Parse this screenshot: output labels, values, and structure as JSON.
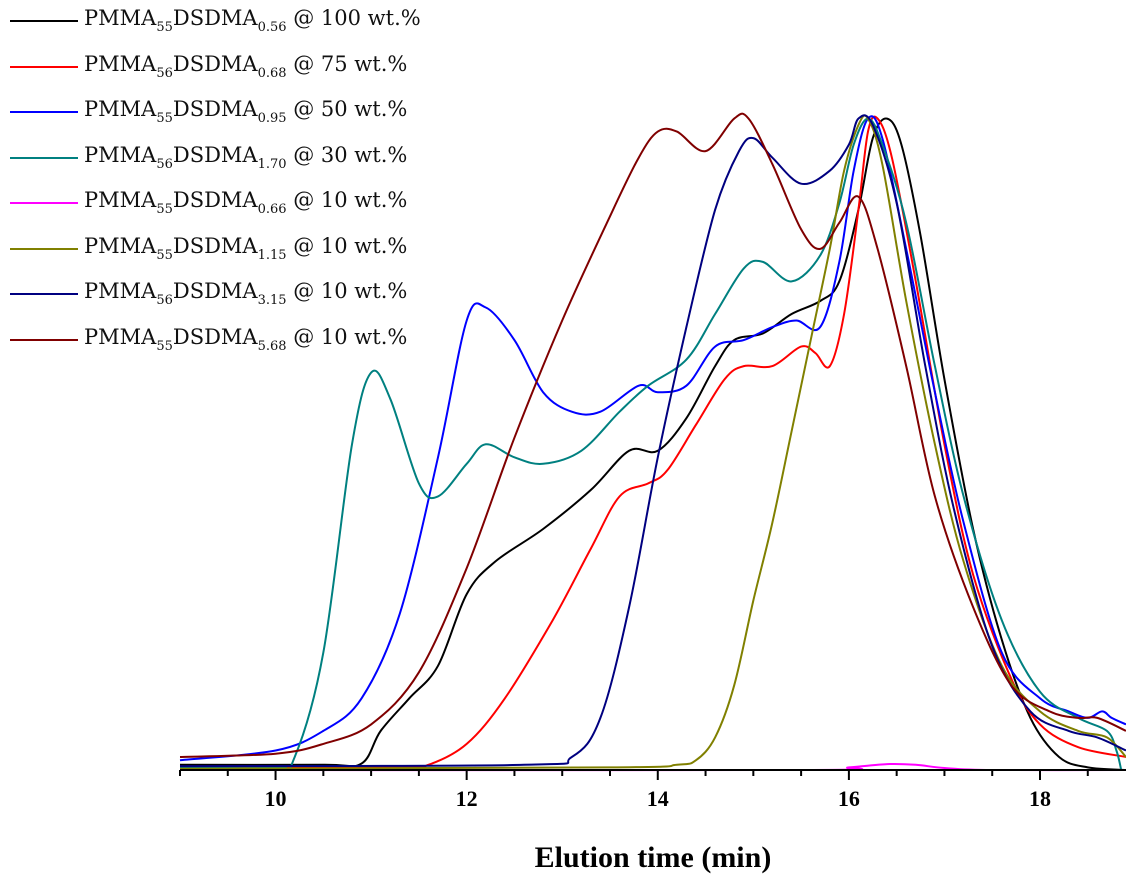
{
  "chart_data": {
    "type": "line",
    "xlabel": "Elution time (min)",
    "ylabel": "",
    "xlim": [
      9,
      18.9
    ],
    "ylim": [
      0,
      1.05
    ],
    "xticks": [
      "10",
      "12",
      "14",
      "16",
      "18"
    ],
    "grid": false,
    "legend_placement": "top-left",
    "series": [
      {
        "name": "PMMA55DSDMA0.56 @ 100 wt.%",
        "label": {
          "pre": "PMMA",
          "sub1": "55",
          "mid": "DSDMA",
          "sub2": "0.56",
          "post": " @ 100 wt.%"
        },
        "color": "#000000",
        "points": [
          [
            9,
            0.008
          ],
          [
            10.5,
            0.008
          ],
          [
            10.9,
            0.01
          ],
          [
            11.1,
            0.06
          ],
          [
            11.4,
            0.11
          ],
          [
            11.7,
            0.16
          ],
          [
            12.0,
            0.27
          ],
          [
            12.3,
            0.32
          ],
          [
            12.8,
            0.37
          ],
          [
            13.3,
            0.43
          ],
          [
            13.7,
            0.49
          ],
          [
            14.0,
            0.49
          ],
          [
            14.3,
            0.54
          ],
          [
            14.6,
            0.62
          ],
          [
            14.8,
            0.66
          ],
          [
            15.1,
            0.67
          ],
          [
            15.4,
            0.7
          ],
          [
            15.7,
            0.72
          ],
          [
            15.9,
            0.75
          ],
          [
            16.1,
            0.86
          ],
          [
            16.25,
            0.97
          ],
          [
            16.4,
            1.0
          ],
          [
            16.55,
            0.96
          ],
          [
            16.75,
            0.82
          ],
          [
            17.0,
            0.6
          ],
          [
            17.3,
            0.37
          ],
          [
            17.6,
            0.2
          ],
          [
            17.9,
            0.08
          ],
          [
            18.2,
            0.02
          ],
          [
            18.5,
            0.004
          ],
          [
            18.9,
            0.0
          ]
        ]
      },
      {
        "name": "PMMA56DSDMA0.68 @ 75 wt.%",
        "label": {
          "pre": "PMMA",
          "sub1": "56",
          "mid": "DSDMA",
          "sub2": "0.68",
          "post": " @ 75 wt.%"
        },
        "color": "#ff0000",
        "points": [
          [
            9,
            0.004
          ],
          [
            11.3,
            0.004
          ],
          [
            11.6,
            0.008
          ],
          [
            12.0,
            0.04
          ],
          [
            12.4,
            0.11
          ],
          [
            12.9,
            0.23
          ],
          [
            13.3,
            0.34
          ],
          [
            13.6,
            0.42
          ],
          [
            13.9,
            0.44
          ],
          [
            14.1,
            0.46
          ],
          [
            14.4,
            0.53
          ],
          [
            14.7,
            0.6
          ],
          [
            14.9,
            0.62
          ],
          [
            15.2,
            0.62
          ],
          [
            15.5,
            0.65
          ],
          [
            15.65,
            0.64
          ],
          [
            15.8,
            0.62
          ],
          [
            15.95,
            0.7
          ],
          [
            16.1,
            0.86
          ],
          [
            16.2,
            0.98
          ],
          [
            16.3,
            1.0
          ],
          [
            16.45,
            0.94
          ],
          [
            16.7,
            0.75
          ],
          [
            17.0,
            0.5
          ],
          [
            17.3,
            0.3
          ],
          [
            17.7,
            0.14
          ],
          [
            18.0,
            0.07
          ],
          [
            18.4,
            0.035
          ],
          [
            18.9,
            0.02
          ]
        ]
      },
      {
        "name": "PMMA55DSDMA0.95 @ 50 wt.%",
        "label": {
          "pre": "PMMA",
          "sub1": "55",
          "mid": "DSDMA",
          "sub2": "0.95",
          "post": " @ 50 wt.%"
        },
        "color": "#0000ff",
        "points": [
          [
            9,
            0.015
          ],
          [
            10.0,
            0.03
          ],
          [
            10.5,
            0.06
          ],
          [
            10.9,
            0.11
          ],
          [
            11.3,
            0.24
          ],
          [
            11.7,
            0.48
          ],
          [
            12.0,
            0.69
          ],
          [
            12.2,
            0.71
          ],
          [
            12.5,
            0.66
          ],
          [
            12.8,
            0.58
          ],
          [
            13.1,
            0.55
          ],
          [
            13.4,
            0.55
          ],
          [
            13.8,
            0.59
          ],
          [
            14.0,
            0.58
          ],
          [
            14.3,
            0.59
          ],
          [
            14.6,
            0.65
          ],
          [
            14.9,
            0.66
          ],
          [
            15.2,
            0.68
          ],
          [
            15.45,
            0.69
          ],
          [
            15.7,
            0.68
          ],
          [
            15.9,
            0.78
          ],
          [
            16.05,
            0.92
          ],
          [
            16.2,
            1.0
          ],
          [
            16.35,
            0.97
          ],
          [
            16.6,
            0.8
          ],
          [
            16.9,
            0.58
          ],
          [
            17.2,
            0.38
          ],
          [
            17.6,
            0.18
          ],
          [
            18.0,
            0.11
          ],
          [
            18.3,
            0.09
          ],
          [
            18.5,
            0.08
          ],
          [
            18.65,
            0.09
          ],
          [
            18.75,
            0.08
          ],
          [
            18.9,
            0.07
          ]
        ]
      },
      {
        "name": "PMMA56DSDMA1.70 @ 30 wt.%",
        "label": {
          "pre": "PMMA",
          "sub1": "56",
          "mid": "DSDMA",
          "sub2": "1.70",
          "post": " @ 30 wt.%"
        },
        "color": "#008080",
        "points": [
          [
            9,
            0.004
          ],
          [
            10.0,
            0.004
          ],
          [
            10.2,
            0.02
          ],
          [
            10.5,
            0.18
          ],
          [
            10.8,
            0.5
          ],
          [
            11.0,
            0.61
          ],
          [
            11.2,
            0.57
          ],
          [
            11.5,
            0.44
          ],
          [
            11.7,
            0.42
          ],
          [
            12.0,
            0.47
          ],
          [
            12.2,
            0.5
          ],
          [
            12.5,
            0.48
          ],
          [
            12.8,
            0.47
          ],
          [
            13.2,
            0.49
          ],
          [
            13.6,
            0.55
          ],
          [
            13.9,
            0.59
          ],
          [
            14.3,
            0.63
          ],
          [
            14.6,
            0.7
          ],
          [
            14.9,
            0.77
          ],
          [
            15.1,
            0.78
          ],
          [
            15.4,
            0.75
          ],
          [
            15.7,
            0.79
          ],
          [
            15.9,
            0.87
          ],
          [
            16.05,
            0.96
          ],
          [
            16.2,
            1.0
          ],
          [
            16.35,
            0.96
          ],
          [
            16.6,
            0.84
          ],
          [
            16.9,
            0.62
          ],
          [
            17.2,
            0.42
          ],
          [
            17.6,
            0.23
          ],
          [
            18.0,
            0.12
          ],
          [
            18.4,
            0.08
          ],
          [
            18.7,
            0.06
          ],
          [
            18.8,
            0.03
          ],
          [
            18.85,
            0.0
          ]
        ]
      },
      {
        "name": "PMMA55DSDMA0.66 @ 10 wt.%",
        "label": {
          "pre": "PMMA",
          "sub1": "55",
          "mid": "DSDMA",
          "sub2": "0.66",
          "post": " @ 10 wt.%"
        },
        "color": "#ff00ff",
        "points": [
          [
            9,
            0.0
          ],
          [
            15.5,
            0.0
          ],
          [
            16.0,
            0.004
          ],
          [
            16.4,
            0.009
          ],
          [
            16.7,
            0.008
          ],
          [
            17.0,
            0.003
          ],
          [
            17.5,
            0.0
          ],
          [
            18.9,
            0.0
          ]
        ]
      },
      {
        "name": "PMMA55DSDMA1.15 @ 10 wt.%",
        "label": {
          "pre": "PMMA",
          "sub1": "55",
          "mid": "DSDMA",
          "sub2": "1.15",
          "post": " @ 10 wt.%"
        },
        "color": "#808000",
        "points": [
          [
            9,
            0.002
          ],
          [
            13.5,
            0.004
          ],
          [
            14.2,
            0.008
          ],
          [
            14.4,
            0.015
          ],
          [
            14.6,
            0.05
          ],
          [
            14.8,
            0.13
          ],
          [
            15.0,
            0.26
          ],
          [
            15.2,
            0.38
          ],
          [
            15.4,
            0.52
          ],
          [
            15.6,
            0.66
          ],
          [
            15.8,
            0.8
          ],
          [
            15.95,
            0.92
          ],
          [
            16.1,
            0.99
          ],
          [
            16.2,
            1.0
          ],
          [
            16.35,
            0.93
          ],
          [
            16.6,
            0.72
          ],
          [
            16.9,
            0.5
          ],
          [
            17.2,
            0.32
          ],
          [
            17.6,
            0.16
          ],
          [
            18.0,
            0.09
          ],
          [
            18.4,
            0.06
          ],
          [
            18.7,
            0.05
          ],
          [
            18.9,
            0.02
          ]
        ]
      },
      {
        "name": "PMMA56DSDMA3.15 @ 10 wt.%",
        "label": {
          "pre": "PMMA",
          "sub1": "56",
          "mid": "DSDMA",
          "sub2": "3.15",
          "post": " @ 10 wt.%"
        },
        "color": "#000080",
        "points": [
          [
            9,
            0.006
          ],
          [
            12.6,
            0.008
          ],
          [
            13.1,
            0.02
          ],
          [
            13.4,
            0.08
          ],
          [
            13.7,
            0.25
          ],
          [
            14.0,
            0.48
          ],
          [
            14.3,
            0.68
          ],
          [
            14.6,
            0.86
          ],
          [
            14.85,
            0.95
          ],
          [
            15.0,
            0.97
          ],
          [
            15.2,
            0.94
          ],
          [
            15.5,
            0.9
          ],
          [
            15.8,
            0.92
          ],
          [
            16.0,
            0.96
          ],
          [
            16.1,
            1.0
          ],
          [
            16.25,
            0.99
          ],
          [
            16.5,
            0.87
          ],
          [
            16.8,
            0.62
          ],
          [
            17.1,
            0.4
          ],
          [
            17.5,
            0.19
          ],
          [
            17.9,
            0.09
          ],
          [
            18.3,
            0.06
          ],
          [
            18.6,
            0.05
          ],
          [
            18.9,
            0.03
          ]
        ]
      },
      {
        "name": "PMMA55DSDMA5.68 @ 10 wt.%",
        "label": {
          "pre": "PMMA",
          "sub1": "55",
          "mid": "DSDMA",
          "sub2": "5.68",
          "post": " @ 10 wt.%"
        },
        "color": "#800000",
        "points": [
          [
            9,
            0.02
          ],
          [
            10.0,
            0.025
          ],
          [
            10.5,
            0.04
          ],
          [
            11.0,
            0.07
          ],
          [
            11.5,
            0.15
          ],
          [
            12.0,
            0.31
          ],
          [
            12.5,
            0.51
          ],
          [
            13.0,
            0.69
          ],
          [
            13.5,
            0.85
          ],
          [
            13.8,
            0.94
          ],
          [
            14.0,
            0.98
          ],
          [
            14.2,
            0.98
          ],
          [
            14.5,
            0.95
          ],
          [
            14.8,
            1.0
          ],
          [
            14.95,
            1.0
          ],
          [
            15.2,
            0.93
          ],
          [
            15.5,
            0.83
          ],
          [
            15.7,
            0.8
          ],
          [
            15.9,
            0.84
          ],
          [
            16.1,
            0.88
          ],
          [
            16.3,
            0.8
          ],
          [
            16.6,
            0.62
          ],
          [
            16.9,
            0.42
          ],
          [
            17.3,
            0.25
          ],
          [
            17.7,
            0.13
          ],
          [
            18.1,
            0.09
          ],
          [
            18.4,
            0.08
          ],
          [
            18.6,
            0.08
          ],
          [
            18.9,
            0.06
          ]
        ]
      }
    ]
  }
}
